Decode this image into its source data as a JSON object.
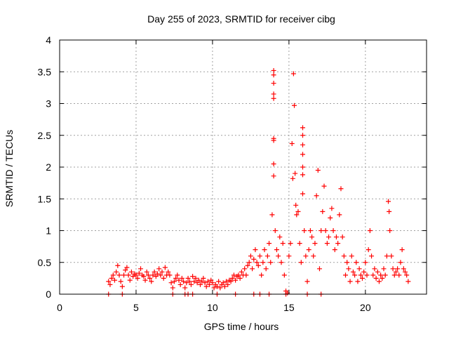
{
  "chart_data": {
    "type": "scatter",
    "title": "Day 255 of 2023, SRMTID for receiver cibg",
    "xlabel": "GPS time / hours",
    "ylabel": "SRMTID / TECUs",
    "xlim": [
      0,
      24
    ],
    "ylim": [
      0,
      4
    ],
    "xticks": [
      0,
      5,
      10,
      15,
      20
    ],
    "yticks": [
      0,
      0.5,
      1,
      1.5,
      2,
      2.5,
      3,
      3.5,
      4
    ],
    "xtick_labels": [
      "0",
      "5",
      "10",
      "15",
      "20"
    ],
    "ytick_labels": [
      "0",
      "0.5",
      "1",
      "1.5",
      "2",
      "2.5",
      "3",
      "3.5",
      "4"
    ],
    "grid": true,
    "marker": "+",
    "color": "#ff0000",
    "series": [
      {
        "name": "SRMTID",
        "points": [
          [
            3.2,
            0.2
          ],
          [
            3.3,
            0.15
          ],
          [
            3.4,
            0.25
          ],
          [
            3.5,
            0.3
          ],
          [
            3.6,
            0.22
          ],
          [
            3.7,
            0.35
          ],
          [
            3.8,
            0.45
          ],
          [
            3.9,
            0.3
          ],
          [
            4.0,
            0.2
          ],
          [
            4.1,
            0.12
          ],
          [
            4.2,
            0.3
          ],
          [
            4.3,
            0.38
          ],
          [
            4.4,
            0.42
          ],
          [
            4.5,
            0.3
          ],
          [
            4.6,
            0.22
          ],
          [
            4.7,
            0.35
          ],
          [
            4.8,
            0.28
          ],
          [
            4.9,
            0.32
          ],
          [
            5.0,
            0.3
          ],
          [
            5.1,
            0.25
          ],
          [
            5.2,
            0.33
          ],
          [
            5.3,
            0.4
          ],
          [
            5.4,
            0.3
          ],
          [
            5.5,
            0.28
          ],
          [
            5.6,
            0.22
          ],
          [
            5.7,
            0.35
          ],
          [
            5.8,
            0.3
          ],
          [
            5.9,
            0.25
          ],
          [
            6.0,
            0.2
          ],
          [
            6.1,
            0.3
          ],
          [
            6.2,
            0.35
          ],
          [
            6.3,
            0.28
          ],
          [
            6.4,
            0.32
          ],
          [
            6.5,
            0.4
          ],
          [
            6.6,
            0.3
          ],
          [
            6.7,
            0.35
          ],
          [
            6.8,
            0.25
          ],
          [
            6.9,
            0.42
          ],
          [
            7.0,
            0.3
          ],
          [
            7.1,
            0.35
          ],
          [
            7.2,
            0.3
          ],
          [
            7.3,
            0.18
          ],
          [
            7.4,
            0.1
          ],
          [
            7.5,
            0.2
          ],
          [
            7.6,
            0.25
          ],
          [
            7.7,
            0.3
          ],
          [
            7.8,
            0.22
          ],
          [
            7.9,
            0.15
          ],
          [
            8.0,
            0.25
          ],
          [
            8.1,
            0.2
          ],
          [
            8.2,
            0.1
          ],
          [
            8.3,
            0.18
          ],
          [
            8.4,
            0.25
          ],
          [
            8.5,
            0.2
          ],
          [
            8.6,
            0.15
          ],
          [
            8.7,
            0.28
          ],
          [
            8.8,
            0.2
          ],
          [
            8.9,
            0.25
          ],
          [
            9.0,
            0.18
          ],
          [
            9.1,
            0.22
          ],
          [
            9.2,
            0.15
          ],
          [
            9.3,
            0.2
          ],
          [
            9.4,
            0.25
          ],
          [
            9.5,
            0.18
          ],
          [
            9.6,
            0.12
          ],
          [
            9.7,
            0.2
          ],
          [
            9.8,
            0.15
          ],
          [
            9.9,
            0.22
          ],
          [
            10.0,
            0.18
          ],
          [
            10.1,
            0.1
          ],
          [
            10.2,
            0.15
          ],
          [
            10.3,
            0.12
          ],
          [
            10.4,
            0.2
          ],
          [
            10.5,
            0.1
          ],
          [
            10.6,
            0.15
          ],
          [
            10.7,
            0.18
          ],
          [
            10.8,
            0.12
          ],
          [
            10.9,
            0.2
          ],
          [
            11.0,
            0.15
          ],
          [
            11.1,
            0.22
          ],
          [
            11.2,
            0.2
          ],
          [
            11.3,
            0.25
          ],
          [
            11.4,
            0.3
          ],
          [
            11.5,
            0.22
          ],
          [
            11.6,
            0.28
          ],
          [
            11.7,
            0.3
          ],
          [
            11.8,
            0.25
          ],
          [
            11.9,
            0.35
          ],
          [
            12.0,
            0.3
          ],
          [
            12.1,
            0.4
          ],
          [
            12.2,
            0.3
          ],
          [
            12.3,
            0.45
          ],
          [
            12.4,
            0.5
          ],
          [
            12.5,
            0.6
          ],
          [
            12.6,
            0.4
          ],
          [
            12.7,
            0.55
          ],
          [
            12.8,
            0.7
          ],
          [
            12.9,
            0.5
          ],
          [
            13.0,
            0.45
          ],
          [
            13.1,
            0.6
          ],
          [
            13.2,
            0.3
          ],
          [
            13.3,
            0.5
          ],
          [
            13.4,
            0.7
          ],
          [
            13.5,
            0.4
          ],
          [
            13.6,
            0.6
          ],
          [
            13.7,
            0.8
          ],
          [
            13.8,
            0.5
          ],
          [
            13.9,
            1.25
          ],
          [
            14.0,
            3.52
          ],
          [
            14.0,
            3.45
          ],
          [
            14.0,
            3.32
          ],
          [
            14.0,
            3.15
          ],
          [
            14.0,
            3.08
          ],
          [
            14.0,
            2.45
          ],
          [
            14.0,
            2.42
          ],
          [
            14.0,
            2.05
          ],
          [
            14.0,
            1.86
          ],
          [
            14.1,
            1.0
          ],
          [
            14.2,
            0.7
          ],
          [
            14.3,
            0.6
          ],
          [
            14.4,
            0.9
          ],
          [
            14.5,
            0.5
          ],
          [
            14.6,
            0.8
          ],
          [
            14.7,
            0.3
          ],
          [
            14.8,
            0.05
          ],
          [
            14.9,
            0.02
          ],
          [
            15.0,
            0.6
          ],
          [
            15.1,
            0.8
          ],
          [
            15.2,
            2.37
          ],
          [
            15.25,
            1.82
          ],
          [
            15.3,
            3.47
          ],
          [
            15.35,
            2.97
          ],
          [
            15.4,
            1.9
          ],
          [
            15.45,
            1.4
          ],
          [
            15.5,
            1.25
          ],
          [
            15.6,
            1.3
          ],
          [
            15.7,
            0.8
          ],
          [
            15.8,
            0.5
          ],
          [
            15.9,
            2.62
          ],
          [
            15.9,
            2.5
          ],
          [
            15.9,
            2.35
          ],
          [
            15.9,
            2.2
          ],
          [
            15.9,
            2.0
          ],
          [
            15.9,
            1.88
          ],
          [
            15.9,
            1.58
          ],
          [
            16.0,
            1.0
          ],
          [
            16.1,
            0.6
          ],
          [
            16.2,
            0.2
          ],
          [
            16.3,
            0.7
          ],
          [
            16.4,
            1.0
          ],
          [
            16.5,
            0.9
          ],
          [
            16.6,
            0.6
          ],
          [
            16.7,
            0.8
          ],
          [
            16.8,
            1.55
          ],
          [
            16.9,
            1.95
          ],
          [
            17.0,
            0.4
          ],
          [
            17.1,
            1.0
          ],
          [
            17.2,
            1.3
          ],
          [
            17.3,
            1.7
          ],
          [
            17.4,
            1.0
          ],
          [
            17.5,
            0.8
          ],
          [
            17.6,
            0.9
          ],
          [
            17.7,
            1.2
          ],
          [
            17.8,
            1.35
          ],
          [
            17.9,
            1.0
          ],
          [
            18.0,
            0.7
          ],
          [
            18.1,
            0.9
          ],
          [
            18.2,
            0.8
          ],
          [
            18.3,
            1.25
          ],
          [
            18.4,
            1.66
          ],
          [
            18.5,
            0.9
          ],
          [
            18.6,
            0.6
          ],
          [
            18.7,
            0.3
          ],
          [
            18.8,
            0.5
          ],
          [
            18.9,
            0.4
          ],
          [
            19.0,
            0.2
          ],
          [
            19.1,
            0.6
          ],
          [
            19.2,
            0.35
          ],
          [
            19.3,
            0.3
          ],
          [
            19.4,
            0.5
          ],
          [
            19.5,
            0.2
          ],
          [
            19.6,
            0.4
          ],
          [
            19.7,
            0.3
          ],
          [
            19.8,
            0.25
          ],
          [
            19.9,
            0.35
          ],
          [
            20.0,
            0.5
          ],
          [
            20.1,
            0.3
          ],
          [
            20.2,
            0.7
          ],
          [
            20.3,
            1.0
          ],
          [
            20.4,
            0.6
          ],
          [
            20.5,
            0.3
          ],
          [
            20.6,
            0.4
          ],
          [
            20.7,
            0.25
          ],
          [
            20.8,
            0.35
          ],
          [
            20.9,
            0.2
          ],
          [
            21.0,
            0.3
          ],
          [
            21.1,
            0.25
          ],
          [
            21.2,
            0.4
          ],
          [
            21.3,
            0.3
          ],
          [
            21.4,
            0.6
          ],
          [
            21.5,
            1.46
          ],
          [
            21.55,
            1.3
          ],
          [
            21.6,
            1.0
          ],
          [
            21.7,
            0.6
          ],
          [
            21.8,
            0.4
          ],
          [
            21.9,
            0.3
          ],
          [
            22.0,
            0.35
          ],
          [
            22.1,
            0.4
          ],
          [
            22.2,
            0.3
          ],
          [
            22.3,
            0.5
          ],
          [
            22.4,
            0.7
          ],
          [
            22.5,
            0.4
          ],
          [
            22.6,
            0.35
          ],
          [
            22.7,
            0.3
          ],
          [
            22.8,
            0.2
          ]
        ]
      },
      {
        "name": "near-zero",
        "points": [
          [
            3.2,
            0.0
          ],
          [
            4.1,
            0.0
          ],
          [
            7.4,
            0.0
          ],
          [
            8.2,
            0.0
          ],
          [
            8.4,
            0.0
          ],
          [
            8.7,
            0.0
          ],
          [
            10.3,
            0.0
          ],
          [
            11.5,
            0.0
          ],
          [
            12.7,
            0.0
          ],
          [
            13.1,
            0.0
          ],
          [
            13.7,
            0.0
          ],
          [
            14.8,
            0.0
          ],
          [
            16.2,
            0.0
          ],
          [
            17.1,
            0.0
          ]
        ]
      }
    ]
  }
}
